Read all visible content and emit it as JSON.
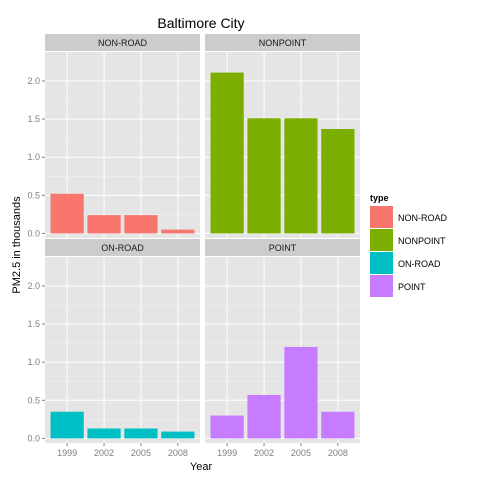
{
  "chart_data": {
    "type": "bar",
    "title": "Baltimore City",
    "xlabel": "Year",
    "ylabel": "PM2.5 in thousands",
    "categories": [
      "1999",
      "2002",
      "2005",
      "2008"
    ],
    "ylim": [
      -0.06,
      2.38
    ],
    "yticks": [
      0.0,
      0.5,
      1.0,
      1.5,
      2.0
    ],
    "ytick_labels": [
      "0.0",
      "0.5",
      "1.0",
      "1.5",
      "2.0"
    ],
    "grid": true,
    "facets": [
      {
        "name": "NON-ROAD",
        "color": "#F8766D",
        "values": [
          0.52,
          0.24,
          0.24,
          0.05
        ]
      },
      {
        "name": "NONPOINT",
        "color": "#7CAE00",
        "values": [
          2.11,
          1.51,
          1.51,
          1.37
        ]
      },
      {
        "name": "ON-ROAD",
        "color": "#00BFC4",
        "values": [
          0.35,
          0.13,
          0.13,
          0.09
        ]
      },
      {
        "name": "POINT",
        "color": "#C77CFF",
        "values": [
          0.3,
          0.57,
          1.2,
          0.35
        ]
      }
    ],
    "legend": {
      "title": "type",
      "position": "right",
      "entries": [
        {
          "label": "NON-ROAD",
          "color": "#F8766D"
        },
        {
          "label": "NONPOINT",
          "color": "#7CAE00"
        },
        {
          "label": "ON-ROAD",
          "color": "#00BFC4"
        },
        {
          "label": "POINT",
          "color": "#C77CFF"
        }
      ]
    }
  }
}
